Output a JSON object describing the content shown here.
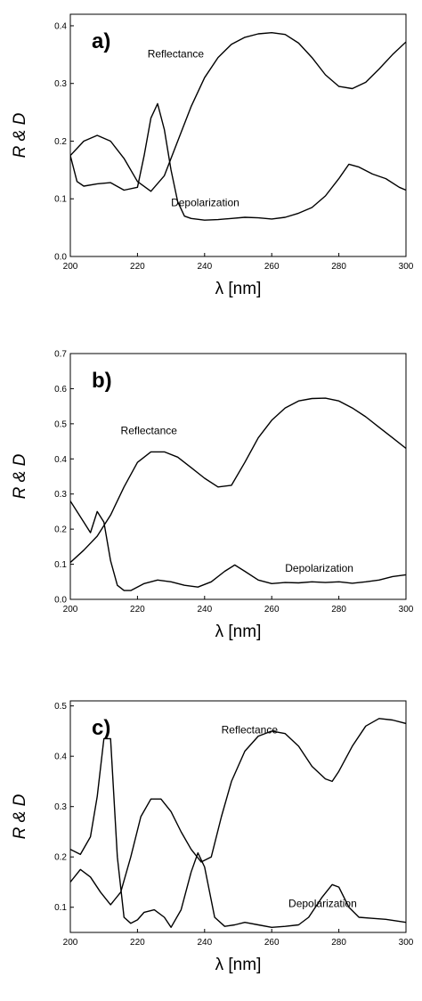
{
  "chart_data": [
    {
      "type": "line",
      "panel_label": "a)",
      "xlabel": "λ [nm]",
      "ylabel": "R & D",
      "xlim": [
        200,
        300
      ],
      "ylim": [
        0,
        0.42
      ],
      "xticks": [
        200,
        220,
        240,
        260,
        280,
        300
      ],
      "yticks": [
        "0.0",
        "0.1",
        "0.2",
        "0.3",
        "0.4"
      ],
      "grid": false,
      "series": [
        {
          "name": "Reflectance",
          "x": [
            200,
            204,
            208,
            212,
            216,
            220,
            224,
            228,
            232,
            236,
            240,
            244,
            248,
            252,
            256,
            260,
            264,
            268,
            272,
            276,
            280,
            284,
            288,
            292,
            296,
            300
          ],
          "y": [
            0.175,
            0.2,
            0.21,
            0.2,
            0.17,
            0.13,
            0.113,
            0.14,
            0.2,
            0.26,
            0.31,
            0.345,
            0.368,
            0.38,
            0.386,
            0.388,
            0.385,
            0.37,
            0.345,
            0.315,
            0.295,
            0.291,
            0.302,
            0.325,
            0.35,
            0.372
          ]
        },
        {
          "name": "Depolarization",
          "x": [
            200,
            202,
            204,
            208,
            212,
            216,
            220,
            222,
            224,
            226,
            228,
            230,
            232,
            234,
            236,
            240,
            244,
            248,
            252,
            256,
            260,
            264,
            268,
            272,
            276,
            280,
            283,
            286,
            290,
            294,
            298,
            300
          ],
          "y": [
            0.175,
            0.13,
            0.122,
            0.126,
            0.128,
            0.115,
            0.12,
            0.175,
            0.24,
            0.265,
            0.22,
            0.15,
            0.095,
            0.07,
            0.066,
            0.063,
            0.064,
            0.066,
            0.068,
            0.067,
            0.065,
            0.068,
            0.075,
            0.085,
            0.105,
            0.135,
            0.16,
            0.155,
            0.143,
            0.135,
            0.12,
            0.115
          ]
        }
      ],
      "annotations": [
        {
          "text": "Reflectance",
          "x": 223,
          "y": 0.345
        },
        {
          "text": "Depolarization",
          "x": 230,
          "y": 0.087
        }
      ]
    },
    {
      "type": "line",
      "panel_label": "b)",
      "xlabel": "λ [nm]",
      "ylabel": "R & D",
      "xlim": [
        200,
        300
      ],
      "ylim": [
        0,
        0.7
      ],
      "xticks": [
        200,
        220,
        240,
        260,
        280,
        300
      ],
      "yticks": [
        "0.0",
        "0.1",
        "0.2",
        "0.3",
        "0.4",
        "0.5",
        "0.6",
        "0.7"
      ],
      "grid": false,
      "series": [
        {
          "name": "Reflectance",
          "x": [
            200,
            204,
            208,
            212,
            216,
            220,
            224,
            228,
            232,
            236,
            240,
            244,
            248,
            252,
            256,
            260,
            264,
            268,
            272,
            276,
            280,
            284,
            288,
            292,
            296,
            300
          ],
          "y": [
            0.105,
            0.14,
            0.18,
            0.24,
            0.32,
            0.39,
            0.42,
            0.42,
            0.405,
            0.375,
            0.345,
            0.32,
            0.325,
            0.39,
            0.46,
            0.51,
            0.545,
            0.565,
            0.572,
            0.573,
            0.565,
            0.545,
            0.52,
            0.49,
            0.46,
            0.43
          ]
        },
        {
          "name": "Depolarization",
          "x": [
            200,
            204,
            206,
            208,
            210,
            212,
            214,
            216,
            218,
            222,
            226,
            230,
            234,
            238,
            242,
            246,
            249,
            252,
            256,
            260,
            264,
            268,
            272,
            276,
            280,
            284,
            288,
            292,
            296,
            300
          ],
          "y": [
            0.28,
            0.22,
            0.19,
            0.25,
            0.22,
            0.11,
            0.04,
            0.025,
            0.025,
            0.045,
            0.055,
            0.05,
            0.04,
            0.035,
            0.05,
            0.08,
            0.098,
            0.08,
            0.055,
            0.045,
            0.048,
            0.047,
            0.05,
            0.048,
            0.05,
            0.046,
            0.05,
            0.055,
            0.065,
            0.07
          ]
        }
      ],
      "annotations": [
        {
          "text": "Reflectance",
          "x": 215,
          "y": 0.47
        },
        {
          "text": "Depolarization",
          "x": 264,
          "y": 0.078
        }
      ]
    },
    {
      "type": "line",
      "panel_label": "c)",
      "xlabel": "λ [nm]",
      "ylabel": "R & D",
      "xlim": [
        200,
        300
      ],
      "ylim": [
        0.05,
        0.51
      ],
      "xticks": [
        200,
        220,
        240,
        260,
        280,
        300
      ],
      "yticks": [
        "0.1",
        "0.2",
        "0.3",
        "0.4",
        "0.5"
      ],
      "grid": false,
      "series": [
        {
          "name": "Reflectance",
          "x": [
            200,
            203,
            206,
            209,
            212,
            215,
            218,
            221,
            224,
            227,
            230,
            233,
            236,
            239,
            242,
            245,
            248,
            252,
            256,
            260,
            264,
            268,
            272,
            276,
            278,
            280,
            284,
            288,
            292,
            296,
            300
          ],
          "y": [
            0.15,
            0.175,
            0.16,
            0.13,
            0.105,
            0.13,
            0.2,
            0.28,
            0.315,
            0.315,
            0.29,
            0.25,
            0.215,
            0.19,
            0.2,
            0.28,
            0.35,
            0.41,
            0.44,
            0.45,
            0.445,
            0.42,
            0.38,
            0.355,
            0.35,
            0.37,
            0.42,
            0.46,
            0.475,
            0.472,
            0.465
          ]
        },
        {
          "name": "Depolarization",
          "x": [
            200,
            203,
            206,
            208,
            210,
            212,
            214,
            216,
            218,
            220,
            222,
            225,
            228,
            230,
            233,
            236,
            238,
            240,
            243,
            246,
            249,
            252,
            256,
            260,
            264,
            268,
            271,
            275,
            278,
            280,
            283,
            286,
            290,
            294,
            298,
            300
          ],
          "y": [
            0.215,
            0.205,
            0.24,
            0.32,
            0.435,
            0.435,
            0.2,
            0.08,
            0.068,
            0.075,
            0.09,
            0.095,
            0.08,
            0.06,
            0.095,
            0.17,
            0.208,
            0.18,
            0.08,
            0.062,
            0.065,
            0.07,
            0.065,
            0.06,
            0.062,
            0.065,
            0.08,
            0.12,
            0.145,
            0.14,
            0.1,
            0.08,
            0.078,
            0.076,
            0.072,
            0.07
          ]
        }
      ],
      "annotations": [
        {
          "text": "Reflectance",
          "x": 245,
          "y": 0.445
        },
        {
          "text": "Depolarization",
          "x": 265,
          "y": 0.1
        }
      ]
    }
  ]
}
